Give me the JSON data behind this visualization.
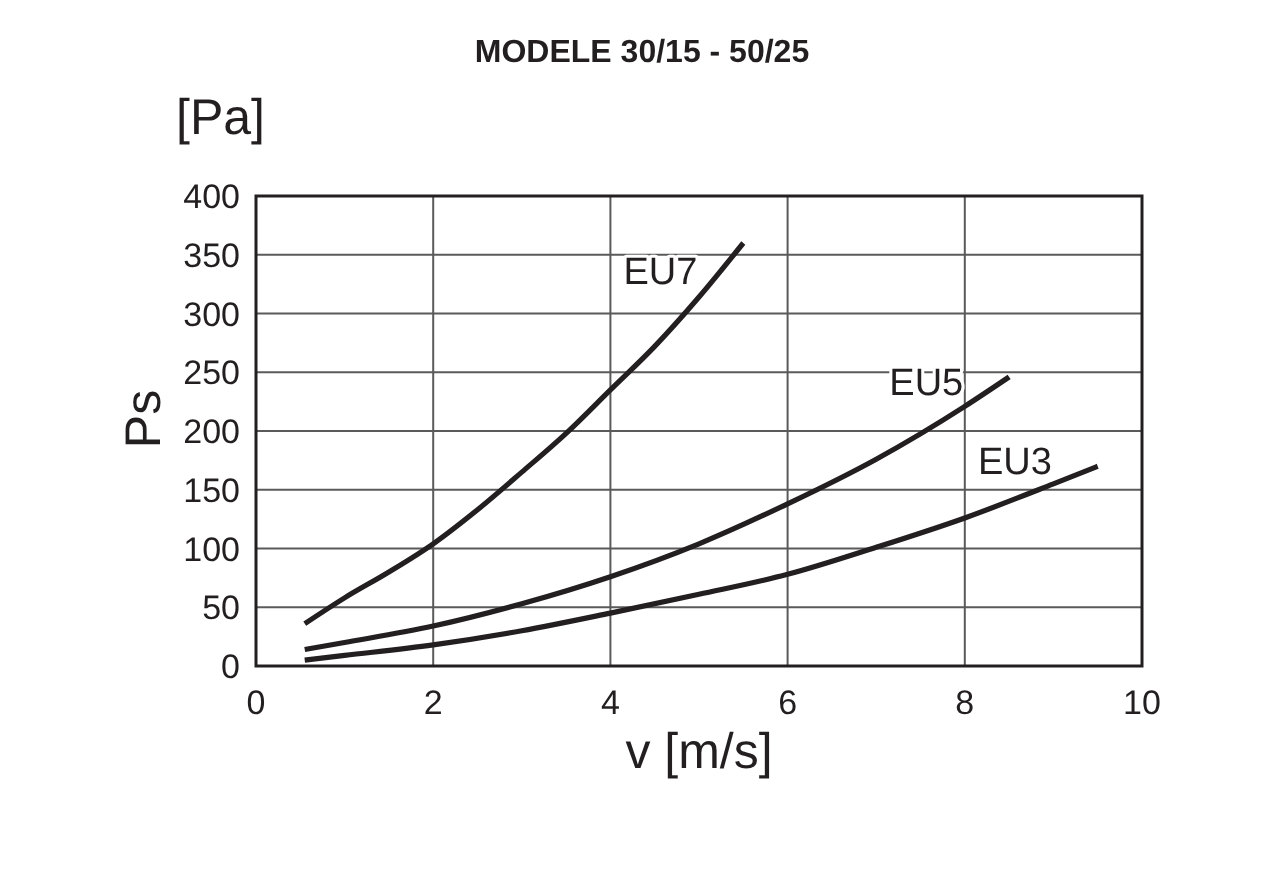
{
  "chart_data": {
    "type": "line",
    "title": "MODELE 30/15 - 50/25",
    "xlabel": "v [m/s]",
    "ylabel": "Ps",
    "annotations": [
      "[Pa]"
    ],
    "series": [
      {
        "name": "EU7",
        "color": "#231f20",
        "x": [
          0.55,
          1,
          1.5,
          2,
          2.5,
          3,
          3.5,
          4,
          4.5,
          5,
          5.5
        ],
        "values": [
          36,
          58,
          80,
          104,
          133,
          165,
          198,
          235,
          272,
          314,
          360
        ]
      },
      {
        "name": "EU5",
        "color": "#231f20",
        "x": [
          0.55,
          1,
          2,
          3,
          4,
          5,
          6,
          7,
          8,
          8.5
        ],
        "values": [
          14,
          20,
          34,
          53,
          76,
          104,
          138,
          176,
          221,
          246
        ]
      },
      {
        "name": "EU3",
        "color": "#231f20",
        "x": [
          0.55,
          1,
          2,
          3,
          4,
          5,
          6,
          7,
          8,
          9,
          9.5
        ],
        "values": [
          5,
          9,
          18,
          30,
          45,
          61,
          78,
          101,
          126,
          155,
          170
        ]
      }
    ],
    "xlim": [
      0,
      10
    ],
    "xticks": [
      0,
      2,
      4,
      6,
      8,
      10
    ],
    "ylim": [
      0,
      400
    ],
    "yticks": [
      0,
      50,
      100,
      150,
      200,
      250,
      300,
      350,
      400
    ],
    "grid": true,
    "line_style": "solid"
  }
}
